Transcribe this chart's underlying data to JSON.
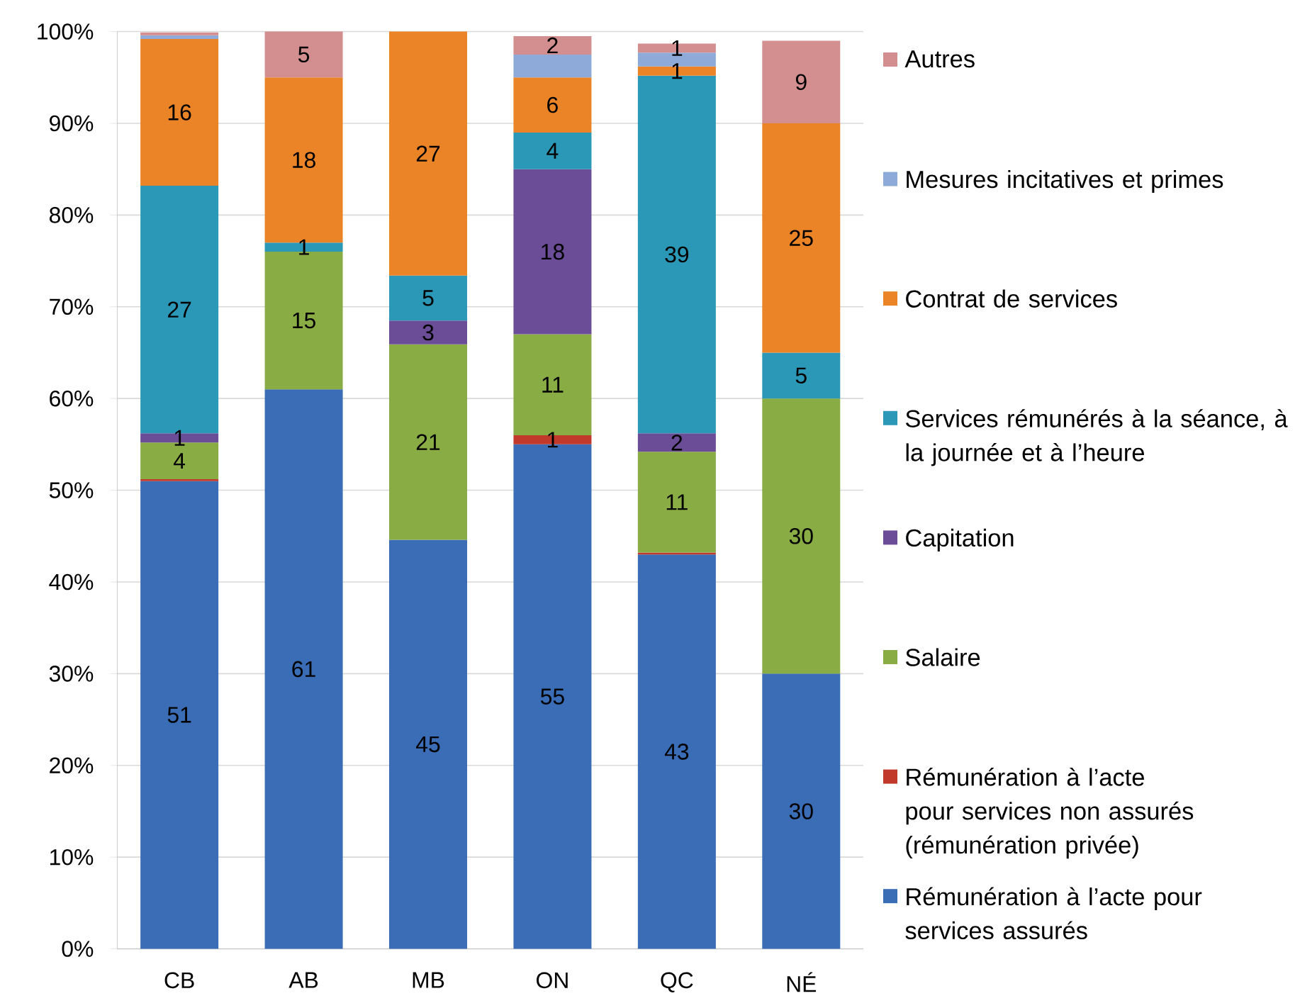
{
  "chart_data": {
    "type": "bar",
    "stacked": true,
    "categories": [
      "CB",
      "AB",
      "MB",
      "ON",
      "QC",
      "NÉ"
    ],
    "series": [
      {
        "name": "Rémunération à l’acte pour services assurés",
        "color": "#3a6db5",
        "values": [
          51,
          61,
          44.6,
          55,
          43,
          30
        ],
        "value_labels": [
          "51",
          "61",
          "45",
          "55",
          "43",
          "30"
        ]
      },
      {
        "name": "Rémunération à l’acte pour services non assurés (rémunération privée)",
        "color": "#c0392b",
        "values": [
          0.2,
          null,
          null,
          1,
          0.2,
          null
        ],
        "value_labels": [
          null,
          null,
          null,
          "1",
          null,
          null
        ]
      },
      {
        "name": "Salaire",
        "color": "#8aac45",
        "values": [
          4,
          15,
          21.3,
          11,
          11,
          30
        ],
        "value_labels": [
          "4",
          "15",
          "21",
          "11",
          "11",
          "30"
        ]
      },
      {
        "name": "Capitation",
        "color": "#6b4c96",
        "values": [
          1,
          null,
          2.6,
          18,
          2,
          null
        ],
        "value_labels": [
          "1",
          null,
          "3",
          "18",
          "2",
          null
        ]
      },
      {
        "name": "Services rémunérés à la séance, à la journée et à l’heure",
        "color": "#2b98b8",
        "values": [
          27,
          1,
          4.9,
          4,
          39,
          5
        ],
        "value_labels": [
          "27",
          "1",
          "5",
          "4",
          "39",
          "5"
        ]
      },
      {
        "name": "Contrat de services",
        "color": "#ea8427",
        "values": [
          16,
          18,
          26.6,
          6,
          1,
          25
        ],
        "value_labels": [
          "16",
          "18",
          "27",
          "6",
          "1",
          "25"
        ]
      },
      {
        "name": "Mesures incitatives et primes",
        "color": "#8eaad8",
        "values": [
          0.4,
          null,
          null,
          2.5,
          1.5,
          null
        ],
        "value_labels": [
          null,
          null,
          null,
          null,
          null,
          null
        ]
      },
      {
        "name": "Autres",
        "color": "#d38f8f",
        "values": [
          0.3,
          5,
          null,
          2,
          1,
          9
        ],
        "value_labels": [
          null,
          "5",
          null,
          "2",
          "1",
          "9"
        ]
      }
    ],
    "ylim": [
      0,
      100
    ],
    "yticks": [
      {
        "value": 0,
        "label": "0%"
      },
      {
        "value": 10,
        "label": "10%"
      },
      {
        "value": 20,
        "label": "20%"
      },
      {
        "value": 30,
        "label": "30%"
      },
      {
        "value": 40,
        "label": "40%"
      },
      {
        "value": 50,
        "label": "50%"
      },
      {
        "value": 60,
        "label": "60%"
      },
      {
        "value": 70,
        "label": "70%"
      },
      {
        "value": 80,
        "label": "80%"
      },
      {
        "value": 90,
        "label": "90%"
      },
      {
        "value": 100,
        "label": "100%"
      }
    ],
    "grid": "y",
    "legend": "right"
  }
}
